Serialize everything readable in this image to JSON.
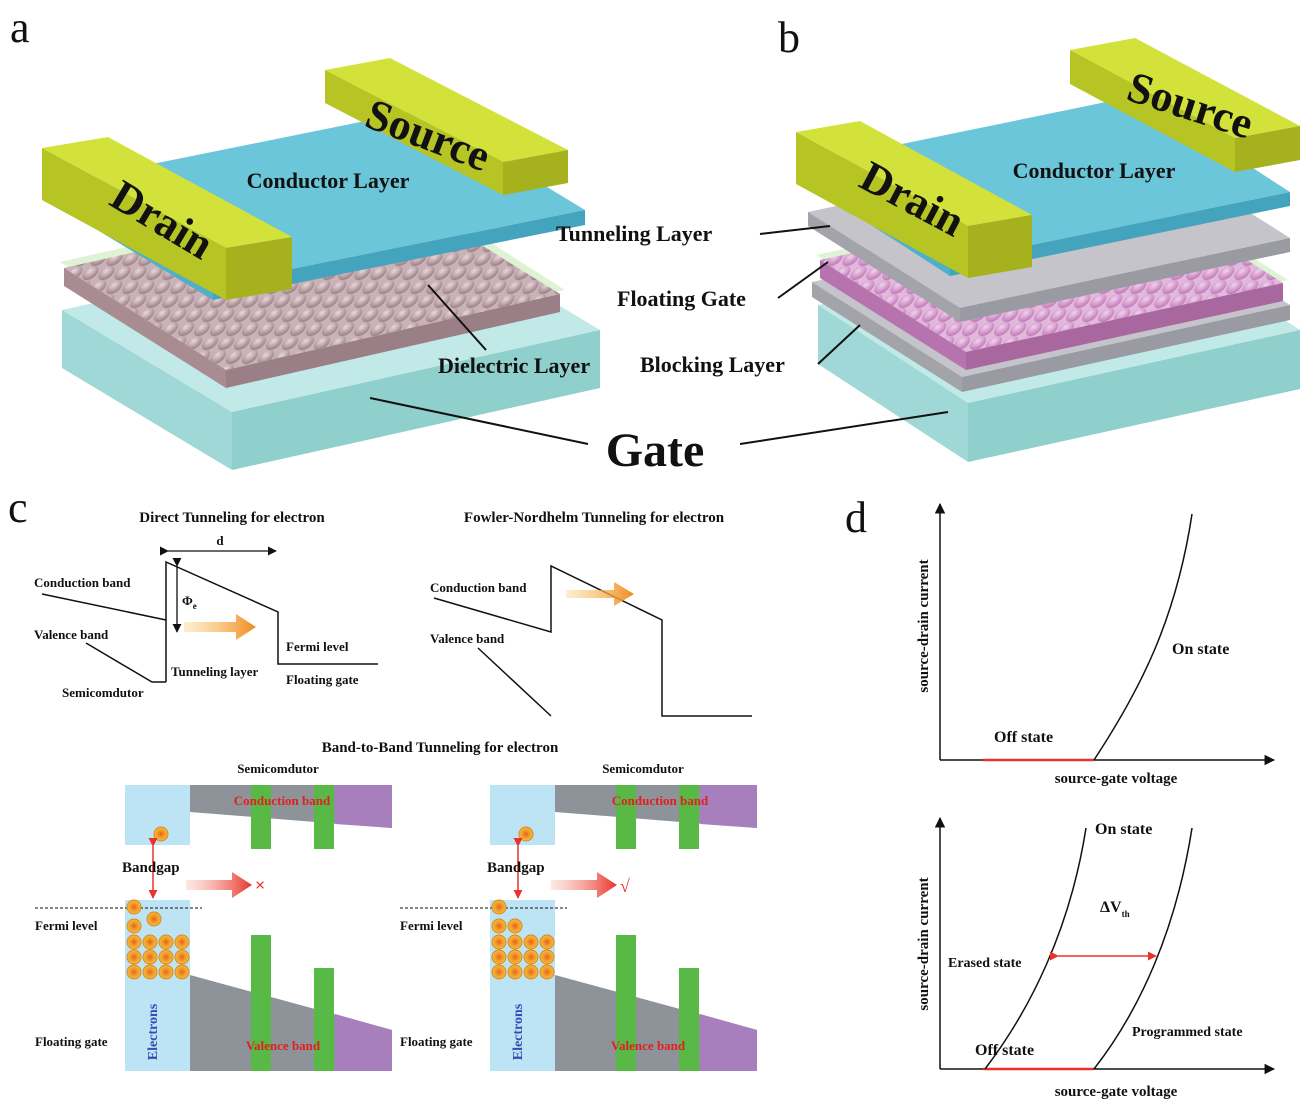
{
  "panels": {
    "a": {
      "letter": "a",
      "source": "Source",
      "drain": "Drain",
      "conductor_layer": "Conductor Layer",
      "dielectric_layer": "Dielectric Layer"
    },
    "b": {
      "letter": "b",
      "source": "Source",
      "drain": "Drain",
      "conductor_layer": "Conductor Layer",
      "tunneling_layer": "Tunneling Layer",
      "floating_gate": "Floating Gate",
      "blocking_layer": "Blocking Layer"
    },
    "gate_label": "Gate",
    "c": {
      "letter": "c",
      "direct": {
        "title": "Direct Tunneling for electron",
        "d": "d",
        "phi": "Φ",
        "phi_sub": "e",
        "conduction_band": "Conduction band",
        "valence_band": "Valence band",
        "fermi_level": "Fermi level",
        "tunneling_layer": "Tunneling layer",
        "floating_gate": "Floating gate",
        "semiconductor": "Semicomdutor"
      },
      "fowler": {
        "title": "Fowler-Nordhelm Tunneling for electron",
        "conduction_band": "Conduction band",
        "valence_band": "Valence band"
      },
      "btb": {
        "title": "Band-to-Band Tunneling for electron",
        "left": {
          "semiconductor": "Semicomdutor",
          "conduction_band": "Conduction band",
          "valence_band": "Valence band",
          "bandgap": "Bandgap",
          "fermi_level": "Fermi level",
          "floating_gate": "Floating gate",
          "electrons": "Electrons",
          "mark": "×"
        },
        "right": {
          "semiconductor": "Semicomdutor",
          "conduction_band": "Conduction band",
          "valence_band": "Valence band",
          "bandgap": "Bandgap",
          "fermi_level": "Fermi level",
          "floating_gate": "Floating gate",
          "electrons": "Electrons",
          "mark": "√"
        }
      }
    },
    "d": {
      "letter": "d",
      "top": {
        "ylabel": "source-drain current",
        "xlabel": "source-gate voltage",
        "on_state": "On state",
        "off_state": "Off state"
      },
      "bottom": {
        "ylabel": "source-drain current",
        "xlabel": "source-gate voltage",
        "on_state": "On state",
        "off_state": "Off state",
        "erased_state": "Erased state",
        "programmed_state": "Programmed state",
        "delta_v": "ΔV",
        "delta_v_sub": "th"
      }
    }
  },
  "colors": {
    "electrode": "#c9d82a",
    "conductor": "#5fbcd3",
    "gate_slab": "#a8e0df",
    "nanoparticle": "#b79aa0",
    "nanoparticle_pink": "#d79ed0",
    "insulator_gray": "#b4b4ba",
    "band_gray": "#8d9398",
    "band_purple": "#a77fbd",
    "band_green": "#58b947",
    "electron_fill": "#f0a72a",
    "arrow_red": "#e8322a",
    "light_blue": "#bde4f4"
  }
}
